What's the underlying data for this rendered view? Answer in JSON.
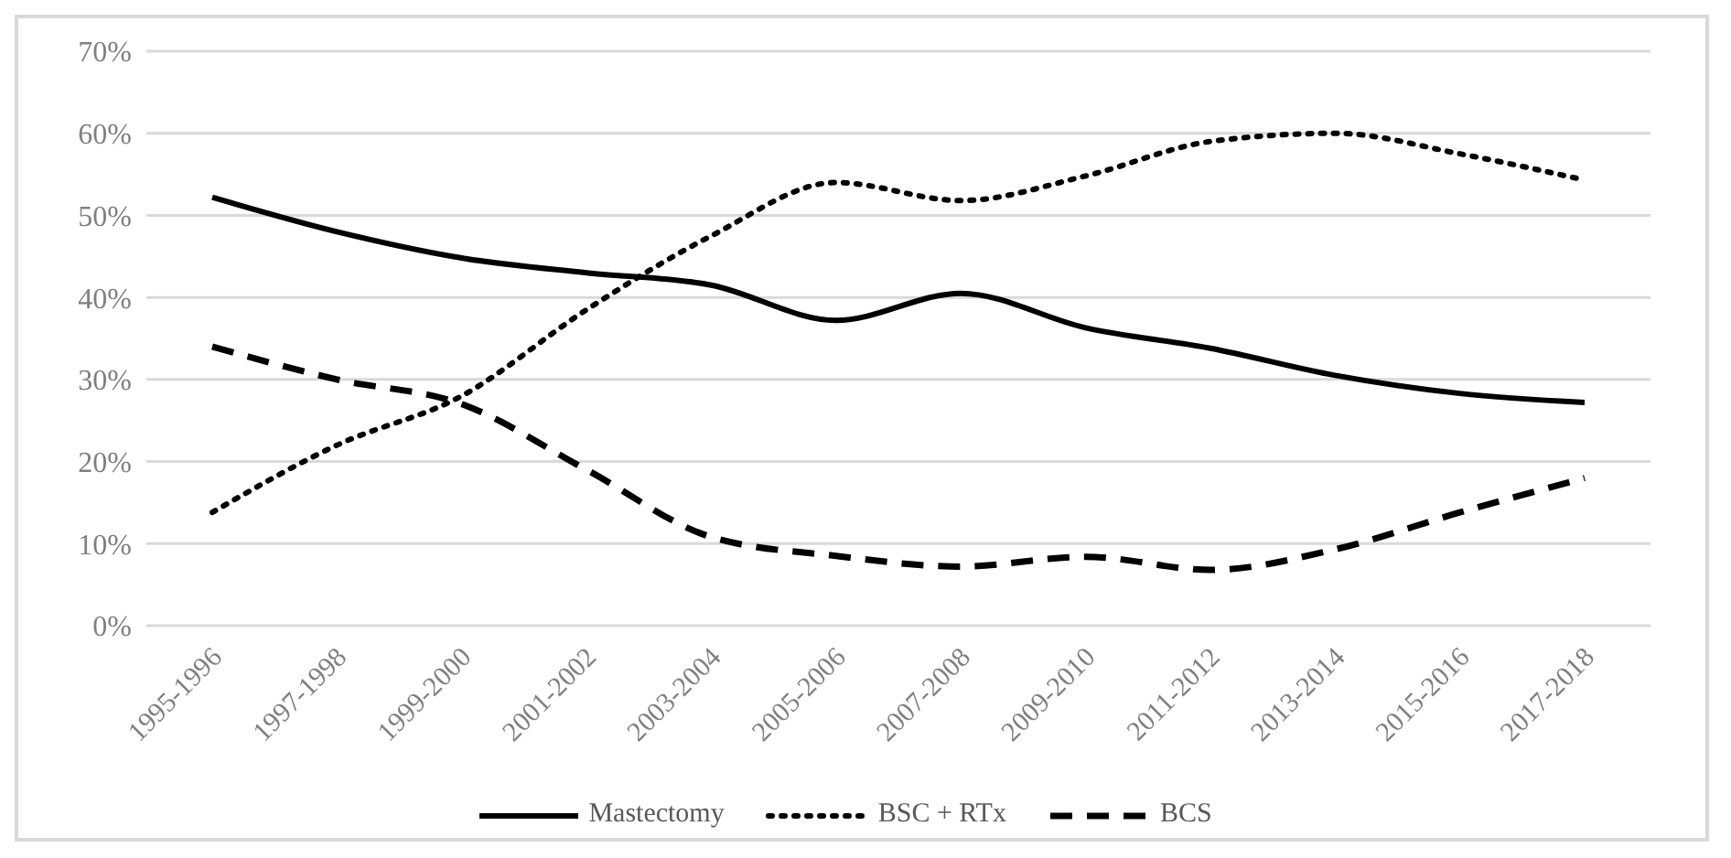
{
  "chart_data": {
    "type": "line",
    "categories": [
      "1995-1996",
      "1997-1998",
      "1999-2000",
      "2001-2002",
      "2003-2004",
      "2005-2006",
      "2007-2008",
      "2009-2010",
      "2011-2012",
      "2013-2014",
      "2015-2016",
      "2017-2018"
    ],
    "series": [
      {
        "name": "Mastectomy",
        "color": "#000000",
        "line_style": "solid",
        "values": [
          52.2,
          48,
          44.8,
          43,
          41.5,
          37.2,
          40.5,
          36.3,
          33.8,
          30.5,
          28.3,
          27.2
        ]
      },
      {
        "name": "BSC + RTx",
        "color": "#000000",
        "line_style": "dotted",
        "values": [
          13.8,
          22,
          28,
          38.5,
          47.5,
          54,
          51.8,
          54.8,
          59,
          60,
          57.5,
          54.3
        ]
      },
      {
        "name": "BCS",
        "color": "#000000",
        "line_style": "dashed",
        "values": [
          34,
          30,
          27,
          19,
          10.8,
          8.5,
          7.2,
          8.4,
          6.8,
          9.3,
          13.8,
          18
        ]
      }
    ],
    "ylim": [
      0,
      70
    ],
    "yticks": [
      {
        "value": 0,
        "label": "0%"
      },
      {
        "value": 10,
        "label": "10%"
      },
      {
        "value": 20,
        "label": "20%"
      },
      {
        "value": 30,
        "label": "30%"
      },
      {
        "value": 40,
        "label": "40%"
      },
      {
        "value": 50,
        "label": "50%"
      },
      {
        "value": 60,
        "label": "60%"
      },
      {
        "value": 70,
        "label": "70%"
      }
    ],
    "grid": "y",
    "legend": "bottom",
    "marker": "none"
  }
}
